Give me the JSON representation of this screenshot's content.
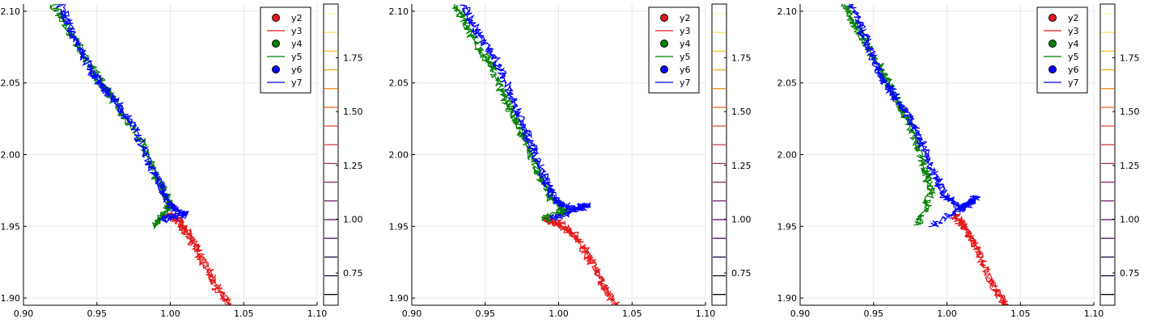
{
  "chart_data": [
    {
      "type": "contour",
      "title": "",
      "xlabel": "",
      "ylabel": "",
      "xlim": [
        0.9,
        1.1
      ],
      "ylim": [
        1.895,
        2.105
      ],
      "x_ticks": [
        "0.90",
        "0.95",
        "1.00",
        "1.05",
        "1.10"
      ],
      "y_ticks": [
        "1.90",
        "1.95",
        "2.00",
        "2.05",
        "2.10"
      ],
      "grid": true,
      "legend_position": "top-right",
      "legend": [
        {
          "label": "y2",
          "kind": "marker",
          "color": "#e41a1c"
        },
        {
          "label": "y3",
          "kind": "line",
          "color": "#e41a1c"
        },
        {
          "label": "y4",
          "kind": "marker",
          "color": "#008000"
        },
        {
          "label": "y5",
          "kind": "line",
          "color": "#008000"
        },
        {
          "label": "y6",
          "kind": "marker",
          "color": "#0000ff"
        },
        {
          "label": "y7",
          "kind": "line",
          "color": "#0000ff"
        }
      ],
      "colorbar": {
        "ticks": [
          "0.75",
          "1.00",
          "1.25",
          "1.50",
          "1.75"
        ],
        "range": [
          0.6,
          2.0
        ]
      },
      "trajectories": [
        {
          "name": "y3",
          "color": "#e41a1c",
          "points": [
            [
              1.04,
              1.895
            ],
            [
              1.03,
              1.91
            ],
            [
              1.02,
              1.93
            ],
            [
              1.012,
              1.945
            ],
            [
              1.005,
              1.955
            ],
            [
              0.998,
              1.958
            ]
          ]
        },
        {
          "name": "y5",
          "color": "#008000",
          "points": [
            [
              0.92,
              2.105
            ],
            [
              0.935,
              2.08
            ],
            [
              0.95,
              2.055
            ],
            [
              0.96,
              2.04
            ],
            [
              0.98,
              2.01
            ],
            [
              0.99,
              1.985
            ],
            [
              1.0,
              1.965
            ],
            [
              0.99,
              1.95
            ]
          ]
        },
        {
          "name": "y7",
          "color": "#0000ff",
          "points": [
            [
              0.925,
              2.105
            ],
            [
              0.935,
              2.08
            ],
            [
              0.948,
              2.055
            ],
            [
              0.96,
              2.04
            ],
            [
              0.975,
              2.02
            ],
            [
              0.99,
              1.985
            ],
            [
              1.0,
              1.965
            ],
            [
              1.01,
              1.958
            ],
            [
              0.995,
              1.955
            ]
          ]
        }
      ]
    },
    {
      "type": "contour",
      "title": "",
      "xlabel": "",
      "ylabel": "",
      "xlim": [
        0.9,
        1.1
      ],
      "ylim": [
        1.895,
        2.105
      ],
      "x_ticks": [
        "0.90",
        "0.95",
        "1.00",
        "1.05",
        "1.10"
      ],
      "y_ticks": [
        "1.90",
        "1.95",
        "2.00",
        "2.05",
        "2.10"
      ],
      "grid": true,
      "legend_position": "top-right",
      "legend": [
        {
          "label": "y2",
          "kind": "marker",
          "color": "#e41a1c"
        },
        {
          "label": "y3",
          "kind": "line",
          "color": "#e41a1c"
        },
        {
          "label": "y4",
          "kind": "marker",
          "color": "#008000"
        },
        {
          "label": "y5",
          "kind": "line",
          "color": "#008000"
        },
        {
          "label": "y6",
          "kind": "marker",
          "color": "#0000ff"
        },
        {
          "label": "y7",
          "kind": "line",
          "color": "#0000ff"
        }
      ],
      "colorbar": {
        "ticks": [
          "0.75",
          "1.00",
          "1.25",
          "1.50",
          "1.75"
        ],
        "range": [
          0.6,
          2.0
        ]
      },
      "trajectories": [
        {
          "name": "y3",
          "color": "#e41a1c",
          "points": [
            [
              1.04,
              1.895
            ],
            [
              1.03,
              1.91
            ],
            [
              1.02,
              1.93
            ],
            [
              1.01,
              1.945
            ],
            [
              1.0,
              1.952
            ],
            [
              0.99,
              1.955
            ]
          ]
        },
        {
          "name": "y5",
          "color": "#008000",
          "points": [
            [
              0.93,
              2.105
            ],
            [
              0.94,
              2.085
            ],
            [
              0.955,
              2.06
            ],
            [
              0.965,
              2.035
            ],
            [
              0.975,
              2.015
            ],
            [
              0.985,
              1.99
            ],
            [
              0.995,
              1.97
            ],
            [
              1.005,
              1.96
            ],
            [
              0.99,
              1.955
            ]
          ]
        },
        {
          "name": "y7",
          "color": "#0000ff",
          "points": [
            [
              0.935,
              2.105
            ],
            [
              0.945,
              2.085
            ],
            [
              0.96,
              2.06
            ],
            [
              0.97,
              2.035
            ],
            [
              0.98,
              2.01
            ],
            [
              0.99,
              1.985
            ],
            [
              0.998,
              1.968
            ],
            [
              1.01,
              1.962
            ],
            [
              1.02,
              1.965
            ],
            [
              0.995,
              1.955
            ]
          ]
        }
      ]
    },
    {
      "type": "contour",
      "title": "",
      "xlabel": "",
      "ylabel": "",
      "xlim": [
        0.9,
        1.1
      ],
      "ylim": [
        1.895,
        2.105
      ],
      "x_ticks": [
        "0.90",
        "0.95",
        "1.00",
        "1.05",
        "1.10"
      ],
      "y_ticks": [
        "1.90",
        "1.95",
        "2.00",
        "2.05",
        "2.10"
      ],
      "grid": true,
      "legend_position": "top-right",
      "legend": [
        {
          "label": "y2",
          "kind": "marker",
          "color": "#e41a1c"
        },
        {
          "label": "y3",
          "kind": "line",
          "color": "#e41a1c"
        },
        {
          "label": "y4",
          "kind": "marker",
          "color": "#008000"
        },
        {
          "label": "y5",
          "kind": "line",
          "color": "#008000"
        },
        {
          "label": "y6",
          "kind": "marker",
          "color": "#0000ff"
        },
        {
          "label": "y7",
          "kind": "line",
          "color": "#0000ff"
        }
      ],
      "colorbar": {
        "ticks": [
          "0.75",
          "1.00",
          "1.25",
          "1.50",
          "1.75"
        ],
        "range": [
          0.6,
          2.0
        ]
      },
      "trajectories": [
        {
          "name": "y3",
          "color": "#e41a1c",
          "points": [
            [
              1.04,
              1.895
            ],
            [
              1.03,
              1.91
            ],
            [
              1.02,
              1.935
            ],
            [
              1.012,
              1.95
            ],
            [
              1.005,
              1.958
            ]
          ]
        },
        {
          "name": "y5",
          "color": "#008000",
          "points": [
            [
              0.93,
              2.105
            ],
            [
              0.94,
              2.085
            ],
            [
              0.955,
              2.06
            ],
            [
              0.965,
              2.04
            ],
            [
              0.975,
              2.02
            ],
            [
              0.985,
              1.99
            ],
            [
              0.99,
              1.975
            ],
            [
              0.98,
              1.95
            ]
          ]
        },
        {
          "name": "y7",
          "color": "#0000ff",
          "points": [
            [
              0.935,
              2.105
            ],
            [
              0.945,
              2.08
            ],
            [
              0.955,
              2.055
            ],
            [
              0.965,
              2.04
            ],
            [
              0.978,
              2.02
            ],
            [
              0.988,
              1.995
            ],
            [
              0.998,
              1.972
            ],
            [
              1.01,
              1.962
            ],
            [
              1.02,
              1.97
            ],
            [
              0.99,
              1.95
            ]
          ]
        }
      ]
    }
  ]
}
